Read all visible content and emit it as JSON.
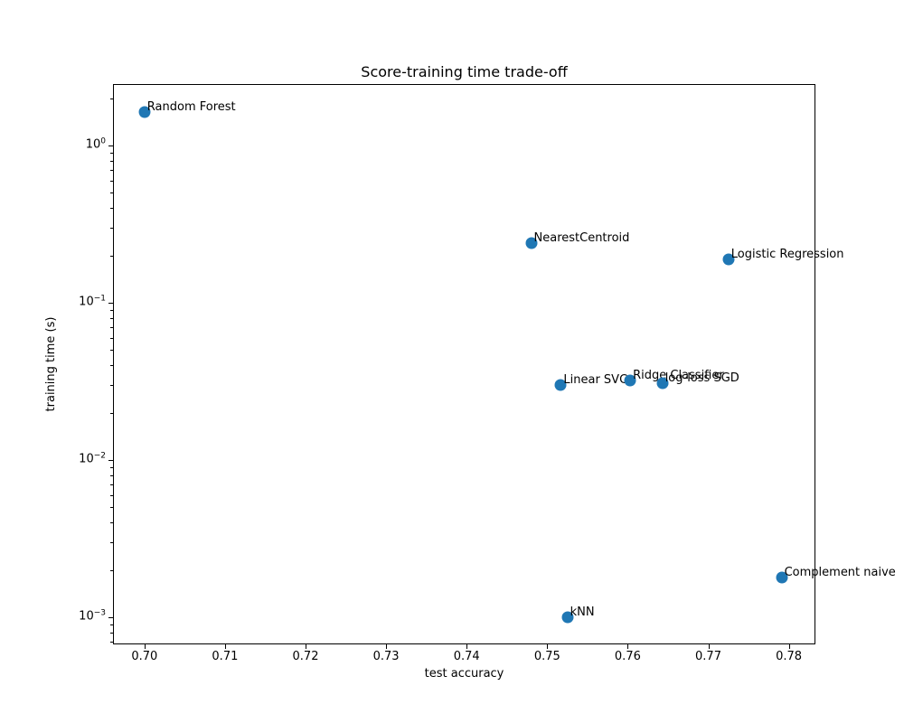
{
  "chart_data": {
    "type": "scatter",
    "title": "Score-training time trade-off",
    "xlabel": "test accuracy",
    "ylabel": "training time (s)",
    "x_scale": "linear",
    "y_scale": "log",
    "xlim": [
      0.6961,
      0.7833
    ],
    "ylim": [
      0.000672,
      2.459
    ],
    "x_ticks": [
      0.7,
      0.71,
      0.72,
      0.73,
      0.74,
      0.75,
      0.76,
      0.77,
      0.78
    ],
    "y_tick_exponents": [
      0,
      -1,
      -2,
      -3
    ],
    "grid": false,
    "legend": false,
    "marker_color": "#1f77b4",
    "points": [
      {
        "label": "Random Forest",
        "x": 0.7,
        "y": 1.63
      },
      {
        "label": "NearestCentroid",
        "x": 0.748,
        "y": 0.24
      },
      {
        "label": "Logistic Regression",
        "x": 0.7725,
        "y": 0.19
      },
      {
        "label": "Linear SVC",
        "x": 0.7517,
        "y": 0.03
      },
      {
        "label": "Ridge Classifier",
        "x": 0.7603,
        "y": 0.032
      },
      {
        "label": "log-loss SGD",
        "x": 0.7643,
        "y": 0.031
      },
      {
        "label": "Complement naive",
        "x": 0.7791,
        "y": 0.0018
      },
      {
        "label": "kNN",
        "x": 0.7525,
        "y": 0.001
      }
    ]
  }
}
